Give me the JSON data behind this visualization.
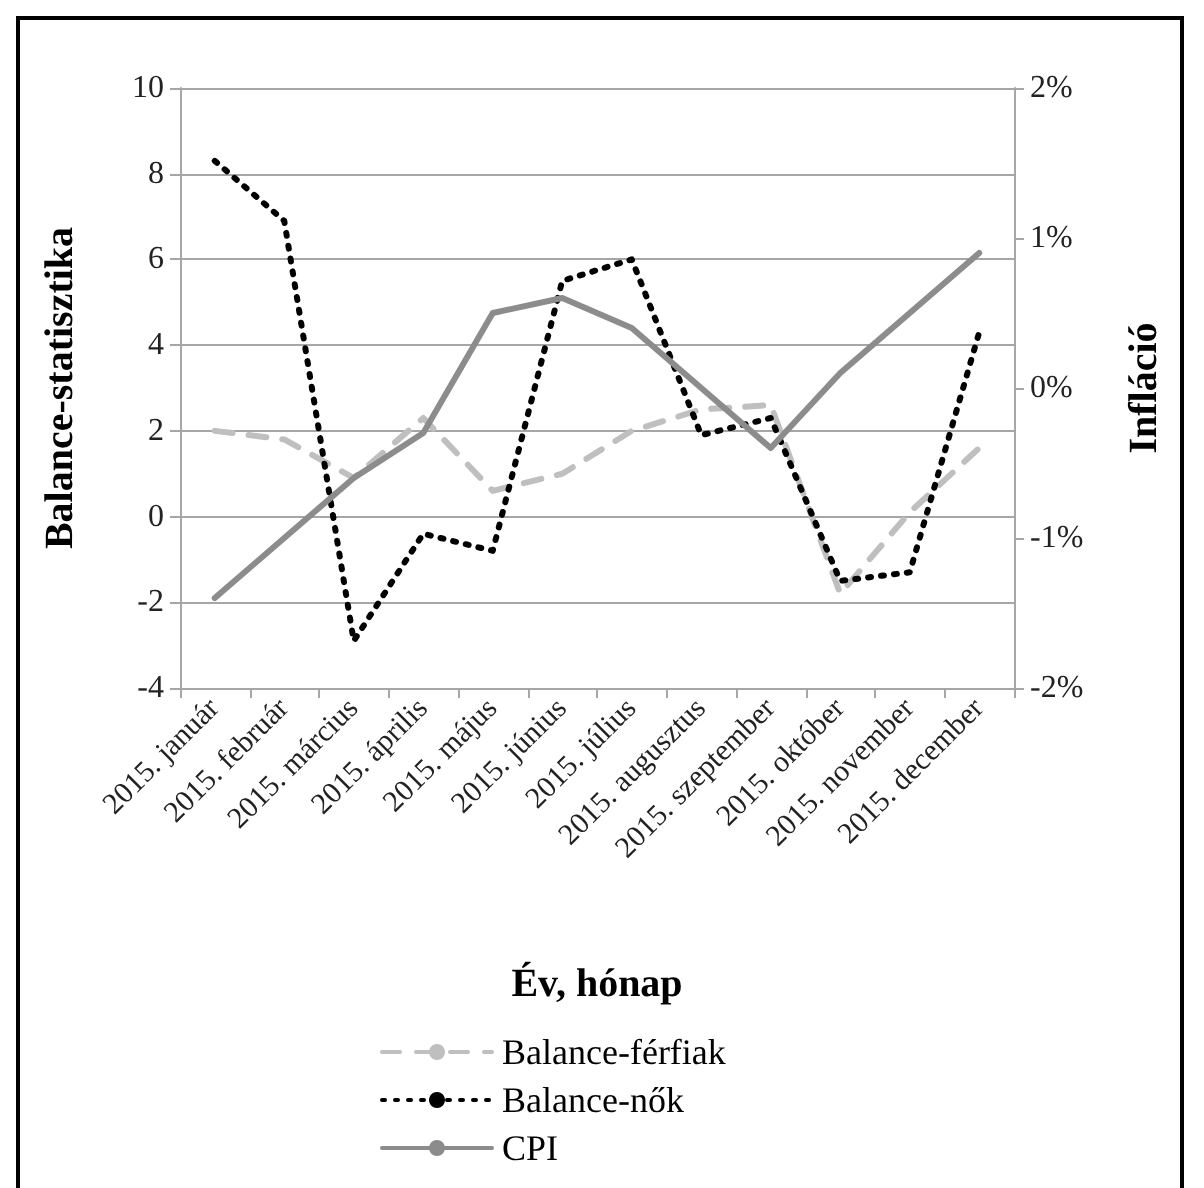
{
  "chart_data": {
    "type": "line",
    "categories": [
      "2015. január",
      "2015. február",
      "2015. március",
      "2015. április",
      "2015. május",
      "2015. június",
      "2015. július",
      "2015. augusztus",
      "2015. szeptember",
      "2015. október",
      "2015. november",
      "2015. december"
    ],
    "xlabel": "Év, hónap",
    "ylabel": "Balance-statisztika",
    "y2label": "Infláció",
    "series": [
      {
        "name": "Balance-férfiak",
        "color": "#bfbfbf",
        "line_style": "dashed",
        "values": [
          2.0,
          1.8,
          0.9,
          2.3,
          0.6,
          1.0,
          2.0,
          2.5,
          2.6,
          -1.8,
          0.1,
          1.6
        ]
      },
      {
        "name": "Balance-nők",
        "color": "#000000",
        "line_style": "dotted",
        "values": [
          8.3,
          6.9,
          -2.9,
          -0.4,
          -0.8,
          5.5,
          6.0,
          1.9,
          2.3,
          -1.5,
          -1.3,
          4.3
        ]
      },
      {
        "name": "CPI",
        "color": "#8c8c8c",
        "line_style": "solid",
        "axis": "y2",
        "values": [
          -1.4,
          -1.0,
          -0.6,
          -0.3,
          0.5,
          0.6,
          0.4,
          0.0,
          -0.4,
          0.1,
          0.5,
          0.9
        ]
      }
    ],
    "ylim": [
      -4,
      10
    ],
    "yticks": [
      -4,
      -2,
      0,
      2,
      4,
      6,
      8,
      10
    ],
    "y2lim": [
      -2,
      2
    ],
    "y2ticks": [
      {
        "value": -2,
        "label": "-2%"
      },
      {
        "value": -1,
        "label": "-1%"
      },
      {
        "value": 0,
        "label": "0%"
      },
      {
        "value": 1,
        "label": "1%"
      },
      {
        "value": 2,
        "label": "2%"
      }
    ],
    "grid": "y",
    "legend": "bottom",
    "marker": "none"
  }
}
